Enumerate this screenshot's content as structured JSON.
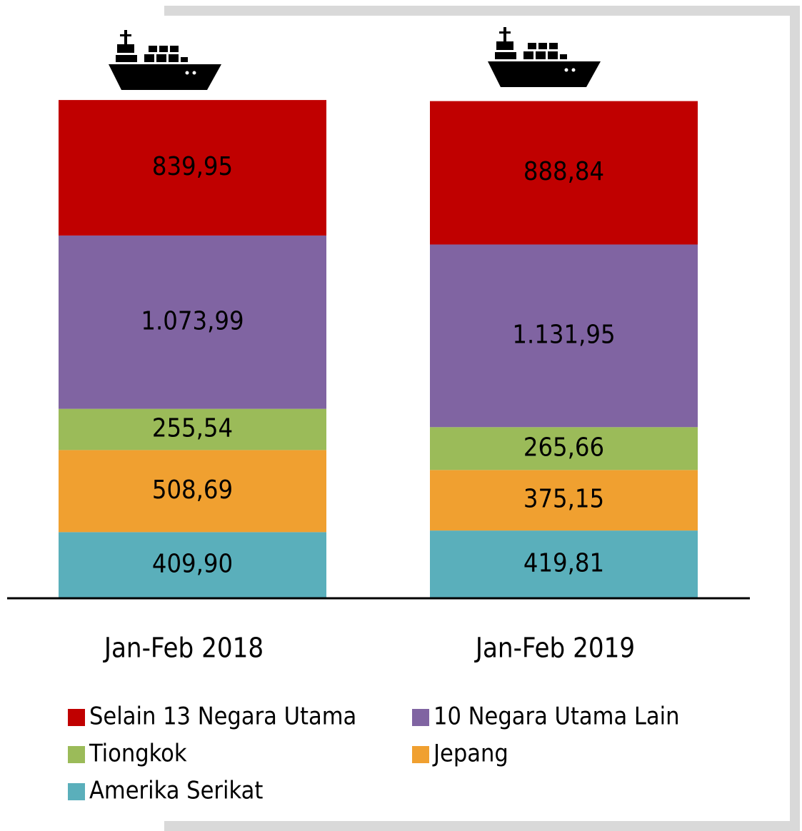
{
  "chart_data": {
    "type": "bar",
    "stacked": true,
    "categories": [
      "Jan-Feb 2018",
      "Jan-Feb 2019"
    ],
    "series": [
      {
        "name": "Selain 13 Negara Utama",
        "color": "#c00000",
        "values": [
          839.95,
          888.84
        ],
        "value_labels": [
          "839,95",
          "888,84"
        ]
      },
      {
        "name": "10 Negara Utama Lain",
        "color": "#8064a2",
        "values": [
          1073.99,
          1131.95
        ],
        "value_labels": [
          "1.073,99",
          "1.131,95"
        ]
      },
      {
        "name": "Tiongkok",
        "color": "#9bbb59",
        "values": [
          255.54,
          265.66
        ],
        "value_labels": [
          "255,54",
          "265,66"
        ]
      },
      {
        "name": "Jepang",
        "color": "#f0a030",
        "values": [
          508.69,
          375.15
        ],
        "value_labels": [
          "508,69",
          "375,15"
        ]
      },
      {
        "name": "Amerika Serikat",
        "color": "#5aafbb",
        "values": [
          409.9,
          419.81
        ],
        "value_labels": [
          "409,90",
          "419,81"
        ]
      }
    ]
  }
}
